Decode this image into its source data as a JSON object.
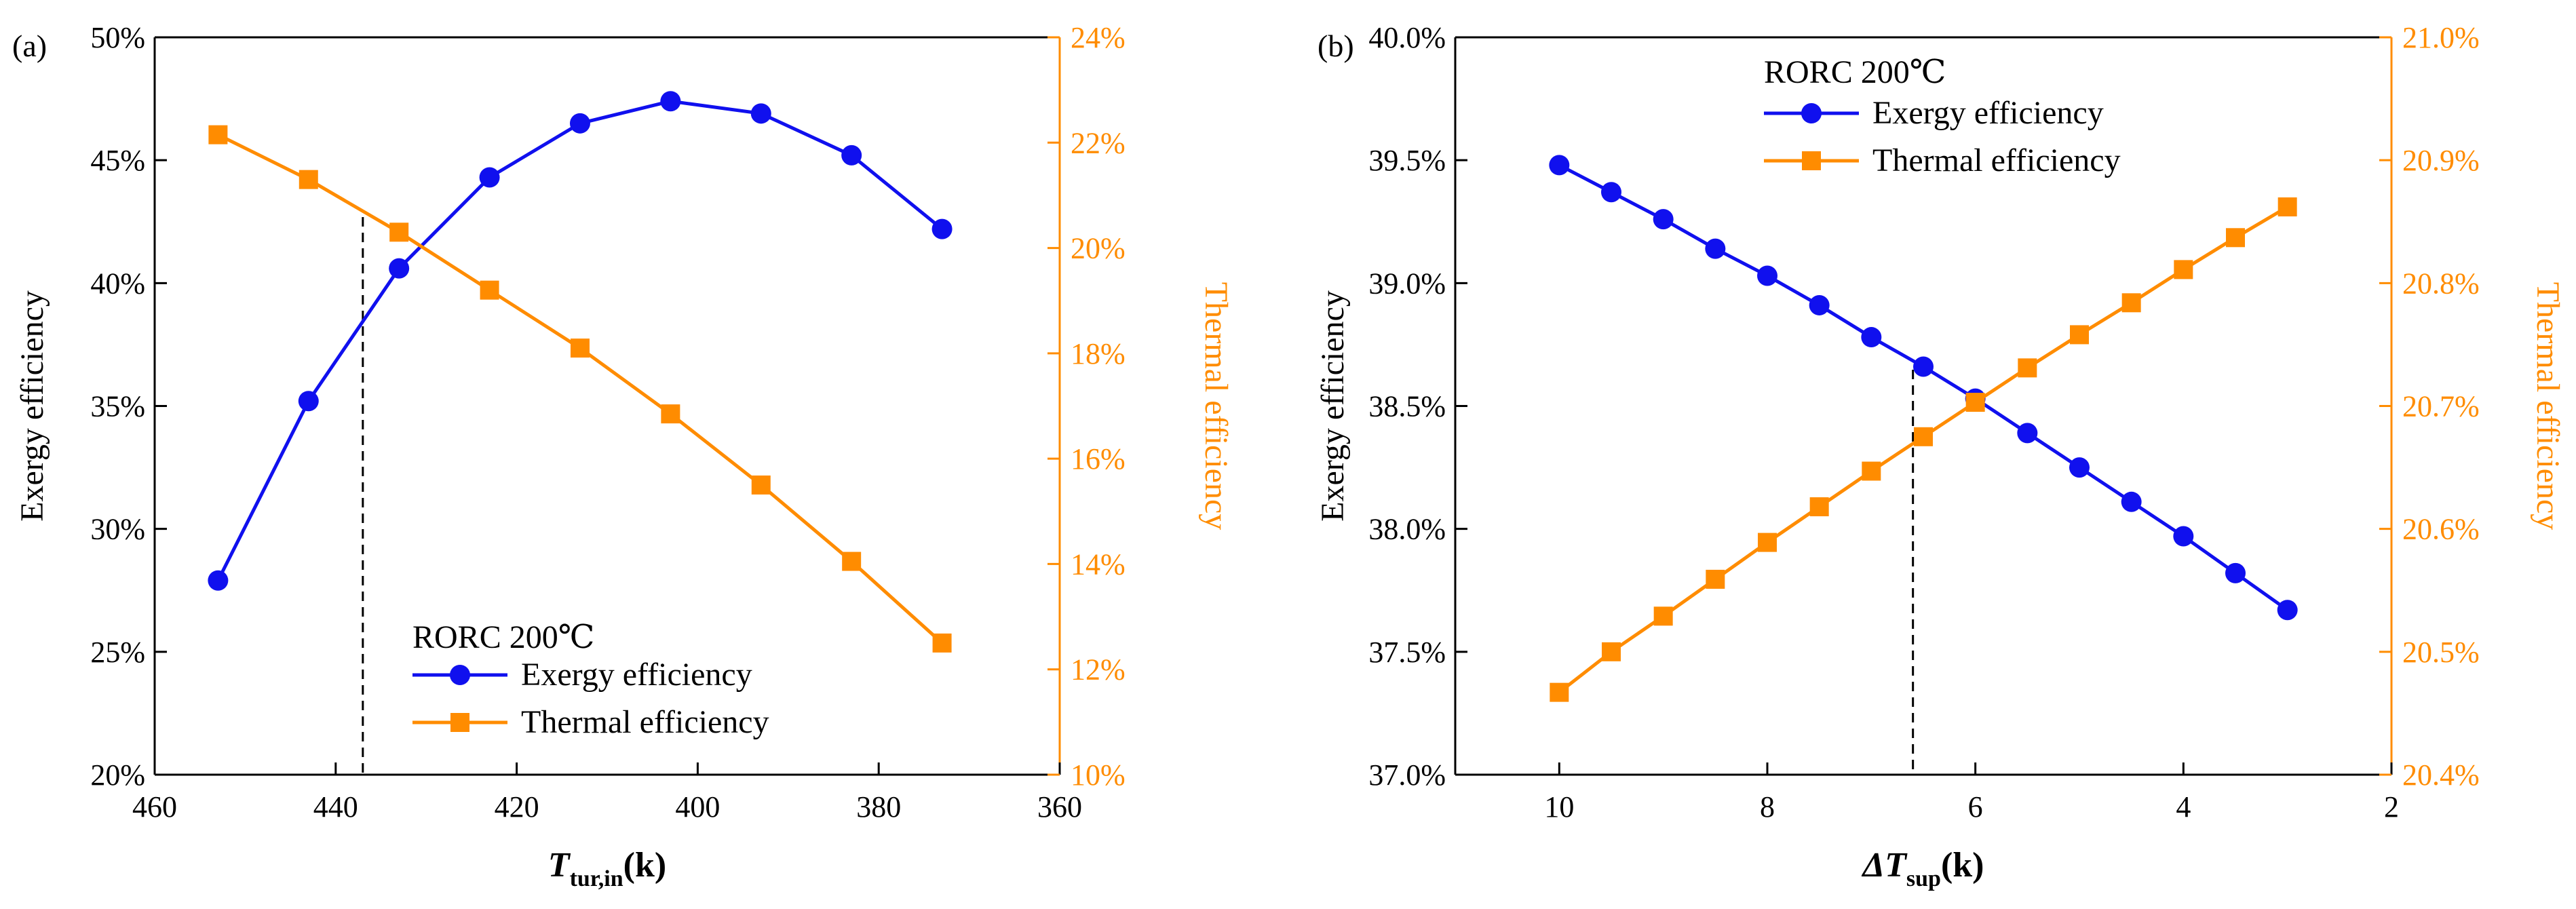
{
  "figure": {
    "colors": {
      "exergy": "#1010ee",
      "thermal": "#ff8c00",
      "axis": "#000000"
    }
  },
  "chart_data": [
    {
      "type": "line",
      "panel_label": "(a)",
      "annotation": "RORC 200℃",
      "legend_position": "bottom-center",
      "xlabel": {
        "main": "T",
        "sub": "tur,in",
        "unit": "(k)"
      },
      "xlim": [
        460,
        360
      ],
      "x_ticks": [
        460,
        440,
        420,
        400,
        380,
        360
      ],
      "x_tick_labels": [
        "460",
        "440",
        "420",
        "400",
        "380",
        "360"
      ],
      "ylabel_left": "Exergy efficiency",
      "ylim_left": [
        20,
        50
      ],
      "y_ticks_left": [
        20,
        25,
        30,
        35,
        40,
        45,
        50
      ],
      "y_tick_labels_left": [
        "20%",
        "25%",
        "30%",
        "35%",
        "40%",
        "45%",
        "50%"
      ],
      "ylabel_right": "Thermal efficiency",
      "ylim_right": [
        10,
        24
      ],
      "y_ticks_right": [
        10,
        12,
        14,
        16,
        18,
        20,
        22,
        24
      ],
      "y_tick_labels_right": [
        "10%",
        "12%",
        "14%",
        "16%",
        "18%",
        "20%",
        "22%",
        "24%"
      ],
      "vline_x": 437,
      "series": [
        {
          "name": "Exergy efficiency",
          "axis": "left",
          "marker": "circle",
          "x": [
            453,
            443,
            433,
            423,
            413,
            403,
            393,
            383,
            373
          ],
          "values": [
            27.9,
            35.2,
            40.6,
            44.3,
            46.5,
            47.4,
            46.9,
            45.2,
            42.2
          ]
        },
        {
          "name": "Thermal efficiency",
          "axis": "right",
          "marker": "square",
          "x": [
            453,
            443,
            433,
            423,
            413,
            403,
            393,
            383,
            373
          ],
          "values": [
            22.15,
            21.3,
            20.3,
            19.2,
            18.1,
            16.85,
            15.5,
            14.05,
            12.5
          ]
        }
      ]
    },
    {
      "type": "line",
      "panel_label": "(b)",
      "annotation": "RORC 200℃",
      "legend_position": "top-left",
      "xlabel": {
        "main": "ΔT",
        "sub": "sup",
        "unit": "(k)"
      },
      "xlim": [
        11,
        2
      ],
      "x_ticks": [
        10,
        8,
        6,
        4,
        2
      ],
      "x_tick_labels": [
        "10",
        "8",
        "6",
        "4",
        "2"
      ],
      "ylabel_left": "Exergy efficiency",
      "ylim_left": [
        37.0,
        40.0
      ],
      "y_ticks_left": [
        37.0,
        37.5,
        38.0,
        38.5,
        39.0,
        39.5,
        40.0
      ],
      "y_tick_labels_left": [
        "37.0%",
        "37.5%",
        "38.0%",
        "38.5%",
        "39.0%",
        "39.5%",
        "40.0%"
      ],
      "ylabel_right": "Thermal efficiency",
      "ylim_right": [
        20.4,
        21.0
      ],
      "y_ticks_right": [
        20.4,
        20.5,
        20.6,
        20.7,
        20.8,
        20.9,
        21.0
      ],
      "y_tick_labels_right": [
        "20.4%",
        "20.5%",
        "20.6%",
        "20.7%",
        "20.8%",
        "20.9%",
        "21.0%"
      ],
      "vline_x": 6.6,
      "series": [
        {
          "name": "Exergy efficiency",
          "axis": "left",
          "marker": "circle",
          "x": [
            10,
            9.5,
            9,
            8.5,
            8,
            7.5,
            7,
            6.5,
            6,
            5.5,
            5,
            4.5,
            4,
            3.5,
            3
          ],
          "values": [
            39.48,
            39.37,
            39.26,
            39.14,
            39.03,
            38.91,
            38.78,
            38.66,
            38.53,
            38.39,
            38.25,
            38.11,
            37.97,
            37.82,
            37.67
          ]
        },
        {
          "name": "Thermal efficiency",
          "axis": "right",
          "marker": "square",
          "x": [
            10,
            9.5,
            9,
            8.5,
            8,
            7.5,
            7,
            6.5,
            6,
            5.5,
            5,
            4.5,
            4,
            3.5,
            3
          ],
          "values": [
            20.467,
            20.5,
            20.529,
            20.559,
            20.589,
            20.618,
            20.647,
            20.675,
            20.703,
            20.731,
            20.758,
            20.784,
            20.811,
            20.837,
            20.862
          ]
        }
      ]
    }
  ]
}
